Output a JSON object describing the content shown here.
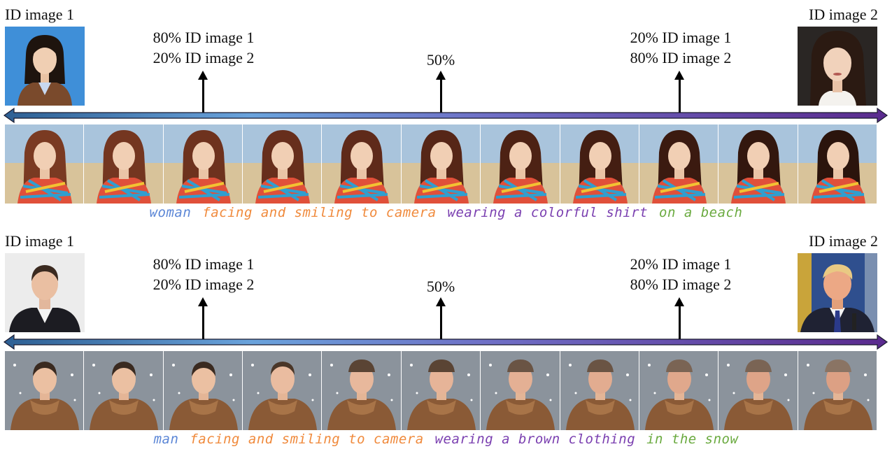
{
  "colors": {
    "subject": "#5b86d6",
    "action": "#f08a3c",
    "clothing": "#7a3fb0",
    "scene": "#6aaa3f",
    "timeline_start": "#2d5f93",
    "timeline_mid": "#6aa3dc",
    "timeline_end": "#5a2a8e"
  },
  "panels": [
    {
      "id_left_label": "ID image 1",
      "id_right_label": "ID image 2",
      "id_left_icon": "portrait-woman-blue-background",
      "id_right_icon": "portrait-woman-dark-hair",
      "markers": [
        {
          "line1": "80% ID image 1",
          "line2": "20% ID image 2"
        },
        {
          "line1": "50%"
        },
        {
          "line1": "20% ID image 1",
          "line2": "80% ID image 2"
        }
      ],
      "frames_icon": "woman-on-beach-colorful-shirt",
      "caption": {
        "subject": "woman",
        "action": "facing and smiling to camera",
        "clothing": "wearing a colorful shirt",
        "scene": "on a beach"
      }
    },
    {
      "id_left_label": "ID image 1",
      "id_right_label": "ID image 2",
      "id_left_icon": "portrait-man-dark-jacket",
      "id_right_icon": "portrait-man-suit-flag-background",
      "markers": [
        {
          "line1": "80% ID image 1",
          "line2": "20% ID image 2"
        },
        {
          "line1": "50%"
        },
        {
          "line1": "20% ID image 1",
          "line2": "80% ID image 2"
        }
      ],
      "frames_icon": "man-in-snow-brown-coat",
      "caption": {
        "subject": "man",
        "action": "facing and smiling to camera",
        "clothing": "wearing a brown clothing",
        "scene": "in the snow"
      }
    }
  ]
}
